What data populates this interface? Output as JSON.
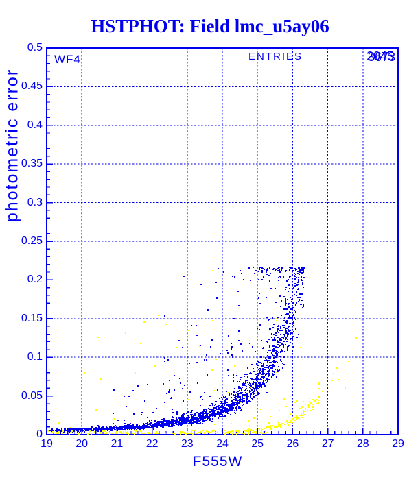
{
  "page": {
    "title": "HSTPHOT: Field lmc_u5ay06"
  },
  "colors": {
    "blue": "#0000ee",
    "yellow": "#ffff00",
    "background": "#ffffff"
  },
  "chart_data": {
    "type": "scatter",
    "title": "HSTPHOT: Field lmc_u5ay06",
    "xlabel": "F555W",
    "ylabel": "photometric error",
    "xlim": [
      19,
      29
    ],
    "ylim": [
      0,
      0.5
    ],
    "grid": "dashed blue gridlines at x majors and y majors",
    "legend_position": "none",
    "x_tick_values": [
      19,
      20,
      21,
      22,
      23,
      24,
      25,
      26,
      27,
      28,
      29
    ],
    "x_tick_labels": [
      "19",
      "20",
      "21",
      "22",
      "23",
      "24",
      "25",
      "26",
      "27",
      "28",
      "29"
    ],
    "y_tick_values": [
      0,
      0.05,
      0.1,
      0.15,
      0.2,
      0.25,
      0.3,
      0.35,
      0.4,
      0.45,
      0.5
    ],
    "y_tick_labels": [
      "0",
      "0.05",
      "0.1",
      "0.15",
      "0.2",
      "0.25",
      "0.3",
      "0.35",
      "0.4",
      "0.45",
      "0.5"
    ],
    "x_minor_step": 0.2,
    "y_minor_step": 0.01,
    "x_gridlines": [
      20,
      21,
      22,
      23,
      24,
      25,
      26,
      27,
      28
    ],
    "y_gridlines": [
      0.05,
      0.1,
      0.15,
      0.2,
      0.25,
      0.3,
      0.35,
      0.4,
      0.45
    ],
    "annotations": {
      "chip": "WF4",
      "entries_label": "ENTRIES",
      "entries_values": [
        "2045",
        "3673"
      ]
    },
    "series": [
      {
        "name": "blue error locus (detections)",
        "color_key": "blue",
        "marker": "2px square",
        "locus": [
          [
            19,
            0.005
          ],
          [
            20,
            0.006
          ],
          [
            21,
            0.008
          ],
          [
            22,
            0.0115
          ],
          [
            23,
            0.018
          ],
          [
            23.5,
            0.0235
          ],
          [
            24,
            0.032
          ],
          [
            24.5,
            0.046
          ],
          [
            25,
            0.066
          ],
          [
            25.5,
            0.102
          ],
          [
            26,
            0.158
          ],
          [
            26.32,
            0.2
          ]
        ],
        "generate": [
          {
            "kind": "locus",
            "count": 1750,
            "seed": 101,
            "x": {
              "min": 19,
              "max": 26.32,
              "pow": 0.7
            },
            "rel_sigma": 0.16,
            "abs_sigma": 0.0006,
            "clamp": [
              0.0015,
              0.216
            ]
          },
          {
            "kind": "mult",
            "count": 290,
            "seed": 202,
            "x": {
              "min": 20.3,
              "max": 26.32,
              "pow": 0.5
            },
            "mult_min": 1.25,
            "mult_max": 8,
            "mult_pow": 3.2,
            "clamp": [
              0.002,
              0.216
            ]
          }
        ],
        "extra_points": [
          [
            22.9,
            0.205
          ],
          [
            22.36,
            0.153
          ],
          [
            23.12,
            0.141
          ],
          [
            21.2,
            0.05
          ]
        ]
      },
      {
        "name": "yellow error locus (second set)",
        "color_key": "yellow",
        "marker": "2px square",
        "locus": [
          [
            24.2,
            0.0035
          ],
          [
            24.6,
            0.0045
          ],
          [
            25,
            0.006
          ],
          [
            25.5,
            0.0105
          ],
          [
            26,
            0.019
          ],
          [
            26.4,
            0.032
          ],
          [
            26.75,
            0.05
          ]
        ],
        "generate": [
          {
            "kind": "band",
            "count": 150,
            "seed": 303,
            "x": {
              "min": 19,
              "max": 25.3,
              "pow": 0.75
            },
            "base": 0.0012,
            "spread": 0.0038,
            "y_pow": 1.6,
            "jitter": 0.0004,
            "clamp": [
              0.0008,
              0.008
            ]
          },
          {
            "kind": "locus",
            "count": 115,
            "seed": 404,
            "x": {
              "min": 24.2,
              "max": 26.75,
              "pow": 0.8
            },
            "rel_sigma": 0.13,
            "abs_sigma": 0,
            "clamp": [
              0.002,
              0.07
            ]
          },
          {
            "kind": "band",
            "count": 55,
            "seed": 505,
            "x": {
              "min": 19.2,
              "max": 26.45,
              "pow": 0.55
            },
            "base": 0.015,
            "spread": 0.145,
            "y_pow": 2.2,
            "jitter": 0.004,
            "clamp": [
              0.008,
              0.214
            ]
          }
        ],
        "extra_points": [
          [
            26.75,
            0.049
          ],
          [
            26.85,
            0.056
          ],
          [
            27.12,
            0.07
          ],
          [
            27.16,
            0.079
          ],
          [
            27.26,
            0.086
          ],
          [
            27.3,
            0.071
          ],
          [
            27.5,
            0.06
          ],
          [
            27.59,
            0.095
          ],
          [
            27.81,
            0.125
          ],
          [
            27.96,
            0.148
          ],
          [
            27.96,
            0.206
          ],
          [
            28.02,
            0.209
          ],
          [
            23.73,
            0.212
          ],
          [
            20.4,
            0.032
          ],
          [
            19.35,
            0.015
          ]
        ]
      }
    ]
  }
}
